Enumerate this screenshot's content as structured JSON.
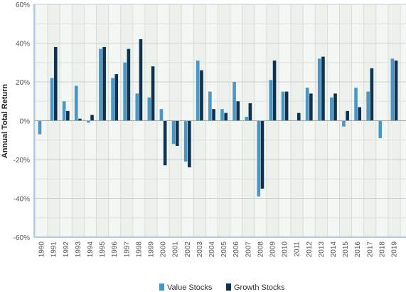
{
  "chart_data": {
    "type": "bar",
    "title": "",
    "xlabel": "",
    "ylabel": "Annual Total Return",
    "ylim": [
      -60,
      60
    ],
    "yticks": [
      -60,
      -40,
      -20,
      0,
      20,
      40,
      60
    ],
    "ytick_labels": [
      "-60%",
      "-40%",
      "-20%",
      "0%",
      "20%",
      "40%",
      "60%"
    ],
    "grid": true,
    "legend_position": "bottom",
    "categories": [
      "1990",
      "1991",
      "1992",
      "1993",
      "1994",
      "1995",
      "1996",
      "1997",
      "1998",
      "1999",
      "2000",
      "2001",
      "2002",
      "2003",
      "2004",
      "2005",
      "2006",
      "2007",
      "2008",
      "2009",
      "2010",
      "2011",
      "2012",
      "2013",
      "2014",
      "2015",
      "2016",
      "2017",
      "2018",
      "2019"
    ],
    "series": [
      {
        "name": "Value Stocks",
        "color": "#4a96c4",
        "values": [
          -7,
          22,
          10,
          18,
          -1,
          37,
          22,
          30,
          14,
          12,
          6,
          -12,
          -21,
          31,
          15,
          6,
          20,
          2,
          -39,
          21,
          15,
          0,
          17,
          32,
          12,
          -3,
          17,
          15,
          -9,
          32
        ]
      },
      {
        "name": "Growth Stocks",
        "color": "#0e3350",
        "values": [
          0,
          38,
          5,
          1,
          3,
          38,
          24,
          37,
          42,
          28,
          -23,
          -13,
          -24,
          26,
          6,
          4,
          10,
          9,
          -35,
          31,
          15,
          4,
          14,
          33,
          14,
          5,
          7,
          27,
          0,
          31
        ]
      }
    ]
  }
}
